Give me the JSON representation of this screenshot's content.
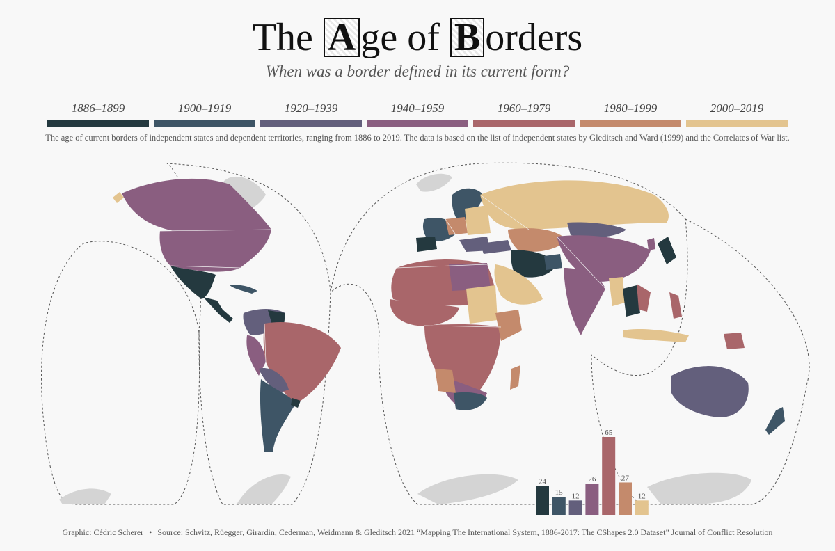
{
  "title": {
    "part1": "The ",
    "cap1": "A",
    "part2": "ge of ",
    "cap2": "B",
    "part3": "orders"
  },
  "subtitle": "When was a border defined in its current form?",
  "description": "The age of current borders of independent states and dependent territories, ranging from 1886 to 2019. The data is based on the list of independent states by Gleditsch and Ward (1999) and the Correlates of War list.",
  "footer": {
    "graphic": "Graphic: Cédric Scherer",
    "bullet": "•",
    "source": "Source: Schvitz, Rüegger, Girardin, Cederman, Weidmann & Gleditsch 2021 “Mapping The International System, 1886-2017: The CShapes 2.0 Dataset” Journal of Conflict Resolution"
  },
  "colors": {
    "1886–1899": "#24393f",
    "1900–1919": "#3e5566",
    "1920–1939": "#635f7c",
    "1940–1959": "#8a5e80",
    "1960–1979": "#a9666a",
    "1980–1999": "#c48a6c",
    "2000–2019": "#e3c48f",
    "antarctica": "#d4d4d4"
  },
  "chart_data": {
    "type": "bar",
    "title": "The Age of Borders",
    "categories": [
      "1886–1899",
      "1900–1919",
      "1920–1939",
      "1940–1959",
      "1960–1979",
      "1980–1999",
      "2000–2019"
    ],
    "values": [
      24,
      15,
      12,
      26,
      65,
      27,
      12
    ],
    "colors": [
      "#24393f",
      "#3e5566",
      "#635f7c",
      "#8a5e80",
      "#a9666a",
      "#c48a6c",
      "#e3c48f"
    ],
    "xlabel": "",
    "ylabel": "",
    "ylim": [
      0,
      65
    ],
    "legend": "top",
    "grid": false
  }
}
